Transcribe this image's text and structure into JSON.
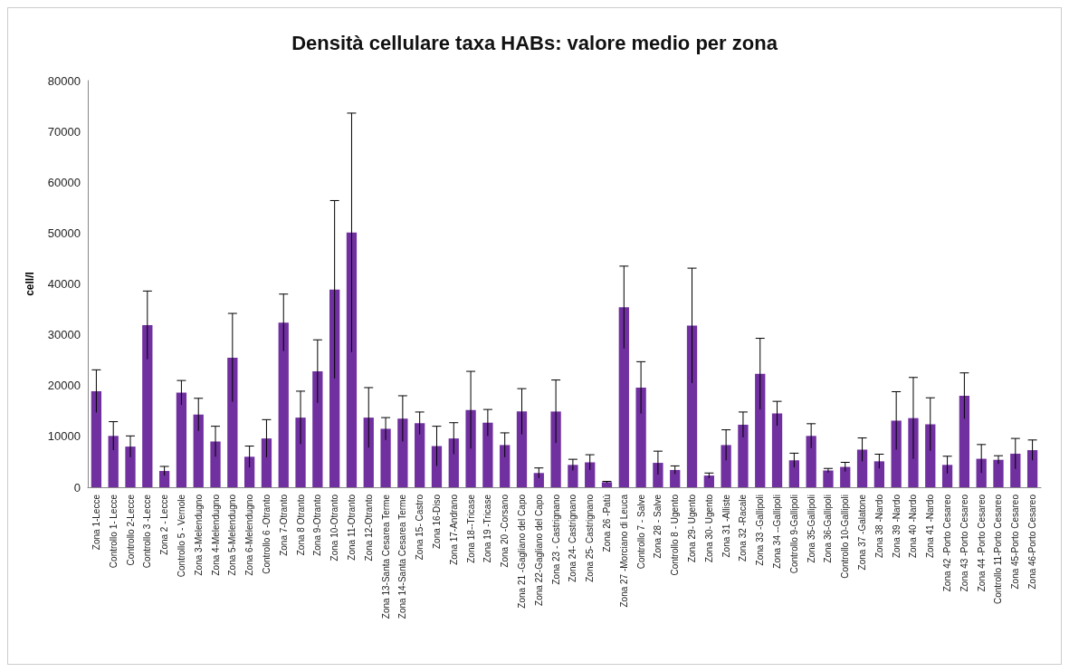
{
  "chart_data": {
    "type": "bar",
    "title": "Densità cellulare taxa HABs: valore medio per zona",
    "ylabel": "cell/l",
    "categories": [
      "Zona 1-Lecce",
      "Controllo 1- Lecce",
      "Controllo 2-Lecce",
      "Controllo 3 -Lecce",
      "Zona 2 - Lecce",
      "Controllo 5 - Vernole",
      "Zona 3-Melendugno",
      "Zona 4-Melendugno",
      "Zona 5-Melendugno",
      "Zona 6-Melendugno",
      "Controllo 6 -Otranto",
      "Zona 7-Otranto",
      "Zona 8 Otranto",
      "Zona 9-Otranto",
      "Zona 10-Otranto",
      "Zona 11-Otranto",
      "Zona 12-Otranto",
      "Zona 13-Santa Cesarea Terme",
      "Zona 14-Santa Cesarea Terme",
      "Zona 15- Castro",
      "Zona 16-Diso",
      "Zona 17-Andrano",
      "Zona 18--Tricase",
      "Zona 19 -Tricase",
      "Zona 20 -Corsano",
      "Zona 21 -Gagliano del Capo",
      "Zona 22-Gagliano del Capo",
      "Zona 23 - Castrignano",
      "Zona 24- Castrignano",
      "Zona 25- Castrignano",
      "Zona 26 -Patù",
      "Zona 27 -Morciano di Leuca",
      "Controllo 7 - Salve",
      "Zona 28 - Salve",
      "Controllo 8 - Ugento",
      "Zona 29- Ugento",
      "Zona 30- Ugento",
      "Zona 31 -Alliste",
      "Zona 32 -Racale",
      "Zona 33 -Gallipoli",
      "Zona 34 --Gallipoli",
      "Controllo 9-Gallipoli",
      "Zona 35-Gallipoli",
      "Zona 36-Gallipoli",
      "Controllo 10-Gallipoli",
      "Zona 37 -Galatone",
      "Zona 38 -Nardo",
      "Zona 39 -Nardo",
      "Zona 40 -Nardo",
      "Zona 41 -Nardo",
      "Zona 42 -Porto Cesareo",
      "Zona 43 -Porto Cesareo",
      "Zona 44 -Porto Cesareo",
      "Controllo 11-Porto Cesareo",
      "Zona 45-Porto Cesareo",
      "Zona 46-Porto Cesareo"
    ],
    "values": [
      18900,
      10100,
      8000,
      31900,
      3200,
      18600,
      14300,
      9000,
      25500,
      6000,
      9600,
      32400,
      13700,
      22800,
      38900,
      50100,
      13700,
      11500,
      13500,
      12600,
      8100,
      9600,
      15200,
      12700,
      8300,
      14900,
      2800,
      14900,
      4400,
      4900,
      1000,
      35400,
      19600,
      4800,
      3400,
      31800,
      2300,
      8300,
      12300,
      22300,
      14500,
      5300,
      10100,
      3300,
      4000,
      7400,
      5100,
      13100,
      13600,
      12400,
      4400,
      18000,
      5600,
      5400,
      6600,
      7300
    ],
    "errors": [
      4200,
      2800,
      2100,
      6700,
      900,
      2400,
      3200,
      3000,
      8700,
      2100,
      3700,
      5600,
      5200,
      6200,
      17500,
      23500,
      5900,
      2200,
      4500,
      2200,
      3900,
      3100,
      7600,
      2600,
      2400,
      4500,
      1000,
      6200,
      1100,
      1500,
      150,
      8100,
      5100,
      2300,
      800,
      11300,
      500,
      3000,
      2500,
      7000,
      2400,
      1400,
      2400,
      400,
      900,
      2300,
      1400,
      5700,
      8000,
      5200,
      1700,
      4500,
      2800,
      800,
      3000,
      2000
    ],
    "color": "#7030a0",
    "ylim": [
      0,
      80000
    ],
    "yticks": [
      0,
      10000,
      20000,
      30000,
      40000,
      50000,
      60000,
      70000,
      80000
    ],
    "grid": false
  }
}
